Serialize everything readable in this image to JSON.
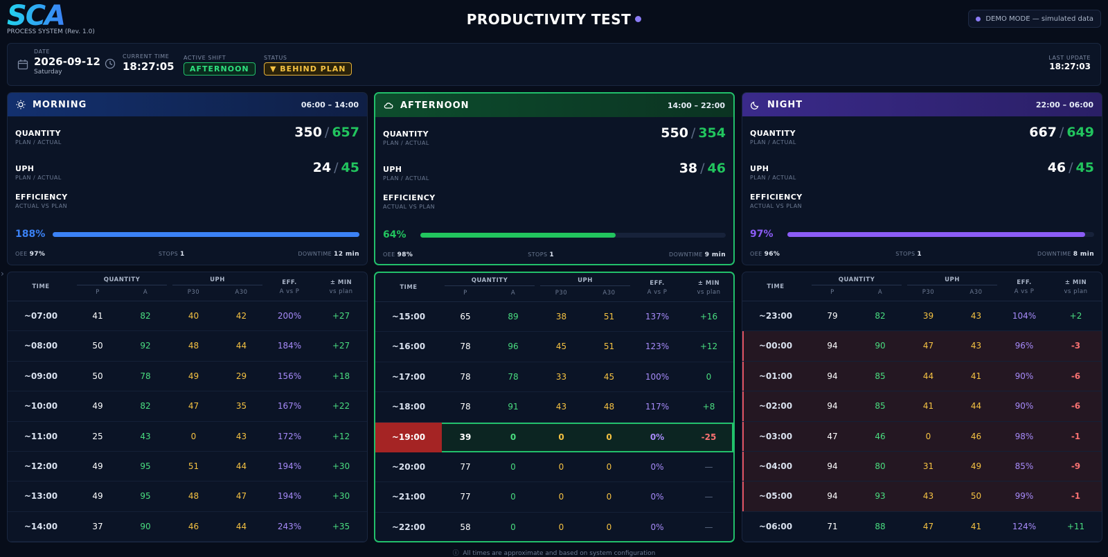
{
  "header": {
    "logo_text": "SCA",
    "subtitle": "PROCESS SYSTEM (Rev. 1.0)",
    "title": "PRODUCTIVITY TEST",
    "demo_badge": "DEMO MODE — simulated data"
  },
  "info": {
    "date_label": "DATE",
    "date": "2026-09-12",
    "weekday": "Saturday",
    "time_label": "CURRENT TIME",
    "time": "18:27:05",
    "shift_label": "ACTIVE SHIFT",
    "shift": "AFTERNOON",
    "status_label": "STATUS",
    "status": "▼ BEHIND PLAN",
    "update_label": "LAST UPDATE",
    "update": "18:27:03"
  },
  "labels": {
    "quantity": "QUANTITY",
    "uph": "UPH",
    "plan_actual": "PLAN / ACTUAL",
    "efficiency": "EFFICIENCY",
    "actual_vs_plan": "ACTUAL VS PLAN",
    "oee": "OEE",
    "stops": "STOPS",
    "downtime": "DOWNTIME",
    "sep": "/",
    "th_time": "TIME",
    "th_quantity": "QUANTITY",
    "th_uph": "UPH",
    "th_eff": "EFF.",
    "th_eff_sub": "A vs P",
    "th_min": "± MIN",
    "th_min_sub": "vs plan",
    "th_p": "P",
    "th_a": "A",
    "th_p30": "P30",
    "th_a30": "A30"
  },
  "colors": {
    "morning": "#3b82f6",
    "afternoon": "#22c55e",
    "night": "#8b5cf6"
  },
  "shifts": [
    {
      "name": "MORNING",
      "hours": "06:00 – 14:00",
      "icon": "sun-icon",
      "qty_plan": "350",
      "qty_actual": "657",
      "uph_plan": "24",
      "uph_actual": "45",
      "efficiency": "188%",
      "efficiency_fill": 1.0,
      "oee": "97%",
      "stops": "1",
      "downtime": "12 min",
      "rows": [
        {
          "time": "~07:00",
          "p": "41",
          "a": "82",
          "p30": "40",
          "a30": "42",
          "eff": "200%",
          "min": "+27"
        },
        {
          "time": "~08:00",
          "p": "50",
          "a": "92",
          "p30": "48",
          "a30": "44",
          "eff": "184%",
          "min": "+27"
        },
        {
          "time": "~09:00",
          "p": "50",
          "a": "78",
          "p30": "49",
          "a30": "29",
          "eff": "156%",
          "min": "+18"
        },
        {
          "time": "~10:00",
          "p": "49",
          "a": "82",
          "p30": "47",
          "a30": "35",
          "eff": "167%",
          "min": "+22"
        },
        {
          "time": "~11:00",
          "p": "25",
          "a": "43",
          "p30": "0",
          "a30": "43",
          "eff": "172%",
          "min": "+12"
        },
        {
          "time": "~12:00",
          "p": "49",
          "a": "95",
          "p30": "51",
          "a30": "44",
          "eff": "194%",
          "min": "+30"
        },
        {
          "time": "~13:00",
          "p": "49",
          "a": "95",
          "p30": "48",
          "a30": "47",
          "eff": "194%",
          "min": "+30"
        },
        {
          "time": "~14:00",
          "p": "37",
          "a": "90",
          "p30": "46",
          "a30": "44",
          "eff": "243%",
          "min": "+35"
        }
      ]
    },
    {
      "name": "AFTERNOON",
      "hours": "14:00 – 22:00",
      "icon": "cloud-icon",
      "qty_plan": "550",
      "qty_actual": "354",
      "uph_plan": "38",
      "uph_actual": "46",
      "efficiency": "64%",
      "efficiency_fill": 0.64,
      "oee": "98%",
      "stops": "1",
      "downtime": "9 min",
      "rows": [
        {
          "time": "~15:00",
          "p": "65",
          "a": "89",
          "p30": "38",
          "a30": "51",
          "eff": "137%",
          "min": "+16"
        },
        {
          "time": "~16:00",
          "p": "78",
          "a": "96",
          "p30": "45",
          "a30": "51",
          "eff": "123%",
          "min": "+12"
        },
        {
          "time": "~17:00",
          "p": "78",
          "a": "78",
          "p30": "33",
          "a30": "45",
          "eff": "100%",
          "min": "0"
        },
        {
          "time": "~18:00",
          "p": "78",
          "a": "91",
          "p30": "43",
          "a30": "48",
          "eff": "117%",
          "min": "+8"
        },
        {
          "time": "~19:00",
          "p": "39",
          "a": "0",
          "p30": "0",
          "a30": "0",
          "eff": "0%",
          "min": "-25"
        },
        {
          "time": "~20:00",
          "p": "77",
          "a": "0",
          "p30": "0",
          "a30": "0",
          "eff": "0%",
          "min": "—"
        },
        {
          "time": "~21:00",
          "p": "77",
          "a": "0",
          "p30": "0",
          "a30": "0",
          "eff": "0%",
          "min": "—"
        },
        {
          "time": "~22:00",
          "p": "58",
          "a": "0",
          "p30": "0",
          "a30": "0",
          "eff": "0%",
          "min": "—"
        }
      ]
    },
    {
      "name": "NIGHT",
      "hours": "22:00 – 06:00",
      "icon": "moon-icon",
      "qty_plan": "667",
      "qty_actual": "649",
      "uph_plan": "46",
      "uph_actual": "45",
      "efficiency": "97%",
      "efficiency_fill": 0.97,
      "oee": "96%",
      "stops": "1",
      "downtime": "8 min",
      "rows": [
        {
          "time": "~23:00",
          "p": "79",
          "a": "82",
          "p30": "39",
          "a30": "43",
          "eff": "104%",
          "min": "+2"
        },
        {
          "time": "~00:00",
          "p": "94",
          "a": "90",
          "p30": "47",
          "a30": "43",
          "eff": "96%",
          "min": "-3"
        },
        {
          "time": "~01:00",
          "p": "94",
          "a": "85",
          "p30": "44",
          "a30": "41",
          "eff": "90%",
          "min": "-6"
        },
        {
          "time": "~02:00",
          "p": "94",
          "a": "85",
          "p30": "41",
          "a30": "44",
          "eff": "90%",
          "min": "-6"
        },
        {
          "time": "~03:00",
          "p": "47",
          "a": "46",
          "p30": "0",
          "a30": "46",
          "eff": "98%",
          "min": "-1"
        },
        {
          "time": "~04:00",
          "p": "94",
          "a": "80",
          "p30": "31",
          "a30": "49",
          "eff": "85%",
          "min": "-9"
        },
        {
          "time": "~05:00",
          "p": "94",
          "a": "93",
          "p30": "43",
          "a30": "50",
          "eff": "99%",
          "min": "-1"
        },
        {
          "time": "~06:00",
          "p": "71",
          "a": "88",
          "p30": "47",
          "a30": "41",
          "eff": "124%",
          "min": "+11"
        }
      ]
    }
  ],
  "footnote": "All times are approximate and based on system configuration"
}
